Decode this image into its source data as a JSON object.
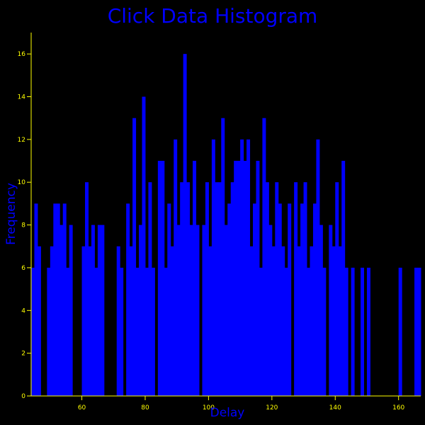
{
  "chart_data": {
    "type": "bar",
    "title": "Click Data Histogram",
    "xlabel": "Delay",
    "ylabel": "Frequency",
    "xlim": [
      44,
      167
    ],
    "ylim": [
      0,
      17
    ],
    "x_ticks": [
      60,
      80,
      100,
      120,
      140,
      160
    ],
    "y_ticks": [
      0,
      2,
      4,
      6,
      8,
      10,
      12,
      14,
      16
    ],
    "bar_color": "#0000ff",
    "axis_color": "#ffff00",
    "background": "#000000",
    "grid": false,
    "x": [
      44,
      45,
      46,
      49,
      50,
      51,
      52,
      53,
      54,
      55,
      56,
      60,
      61,
      62,
      63,
      64,
      65,
      66,
      71,
      72,
      74,
      75,
      76,
      77,
      78,
      79,
      80,
      81,
      82,
      84,
      85,
      86,
      87,
      88,
      89,
      90,
      91,
      92,
      93,
      94,
      95,
      96,
      98,
      99,
      100,
      101,
      102,
      103,
      104,
      105,
      106,
      107,
      108,
      109,
      110,
      111,
      112,
      113,
      114,
      115,
      116,
      117,
      118,
      119,
      120,
      121,
      122,
      123,
      124,
      125,
      127,
      128,
      129,
      130,
      131,
      132,
      133,
      134,
      135,
      136,
      138,
      139,
      140,
      141,
      142,
      143,
      145,
      148,
      150,
      160,
      165,
      166
    ],
    "values": [
      6,
      9,
      7,
      6,
      7,
      9,
      9,
      8,
      9,
      6,
      8,
      7,
      10,
      7,
      8,
      6,
      8,
      8,
      7,
      6,
      9,
      7,
      13,
      6,
      8,
      14,
      6,
      10,
      6,
      11,
      11,
      6,
      9,
      7,
      12,
      8,
      10,
      16,
      10,
      8,
      11,
      8,
      8,
      10,
      7,
      12,
      10,
      10,
      13,
      8,
      9,
      10,
      11,
      11,
      12,
      11,
      12,
      7,
      9,
      11,
      6,
      13,
      10,
      8,
      7,
      10,
      9,
      7,
      6,
      9,
      10,
      7,
      9,
      10,
      6,
      7,
      9,
      12,
      8,
      6,
      8,
      7,
      10,
      7,
      11,
      6,
      6,
      6,
      6,
      6,
      6,
      6
    ]
  }
}
